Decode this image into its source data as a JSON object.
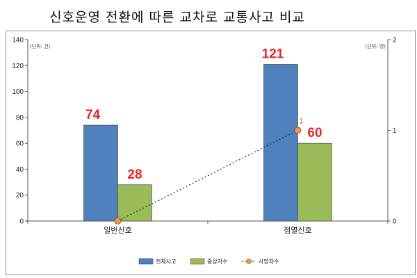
{
  "title": "신호운영 전환에 따른 교차로 교통사고 비교",
  "chart_data": {
    "type": "bar",
    "categories": [
      "일반신호",
      "점멸신호"
    ],
    "series": [
      {
        "name": "전체사고",
        "axis": "left",
        "color": "#4f81bd",
        "values": [
          74,
          121
        ],
        "labels": [
          "74",
          "121"
        ]
      },
      {
        "name": "중상자수",
        "axis": "left",
        "color": "#9bbb59",
        "values": [
          28,
          60
        ],
        "labels": [
          "28",
          "60"
        ]
      },
      {
        "name": "사망자수",
        "axis": "right",
        "type": "line",
        "color": "#f79646",
        "values": [
          0,
          1
        ],
        "labels": [
          "",
          "1"
        ]
      }
    ],
    "left_axis": {
      "unit": "(단위: 건)",
      "ylim": [
        0,
        140
      ],
      "ticks": [
        "0",
        "20",
        "40",
        "60",
        "80",
        "100",
        "120",
        "140"
      ]
    },
    "right_axis": {
      "unit": "(단위: 명)",
      "ylim": [
        0,
        2
      ],
      "ticks": [
        "0",
        "1",
        "2"
      ]
    },
    "data_label_color": "#e8262a",
    "legend_position": "bottom",
    "grid": false
  }
}
